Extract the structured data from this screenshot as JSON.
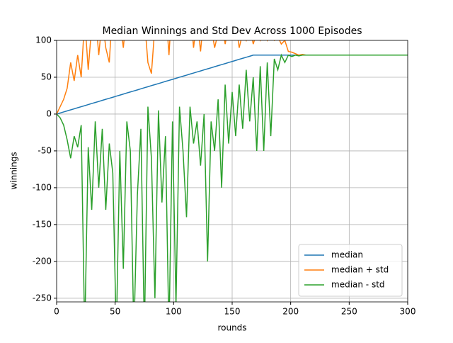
{
  "chart_data": {
    "type": "line",
    "title": "Median Winnings and Std Dev Across 1000 Episodes",
    "xlabel": "rounds",
    "ylabel": "winnings",
    "xlim": [
      0,
      300
    ],
    "ylim": [
      -255,
      100
    ],
    "xticks": [
      0,
      50,
      100,
      150,
      200,
      250,
      300
    ],
    "yticks": [
      -250,
      -200,
      -150,
      -100,
      -50,
      0,
      50,
      100
    ],
    "grid": true,
    "legend": "lower right",
    "x": [
      0,
      3,
      6,
      9,
      12,
      15,
      18,
      21,
      24,
      27,
      30,
      33,
      36,
      39,
      42,
      45,
      48,
      51,
      54,
      57,
      60,
      63,
      66,
      69,
      72,
      75,
      78,
      81,
      84,
      87,
      90,
      93,
      96,
      99,
      102,
      105,
      108,
      111,
      114,
      117,
      120,
      123,
      126,
      129,
      132,
      135,
      138,
      141,
      144,
      147,
      150,
      153,
      156,
      159,
      162,
      165,
      168,
      171,
      174,
      177,
      180,
      183,
      186,
      189,
      192,
      195,
      198,
      201,
      204,
      207,
      210,
      213,
      216,
      219,
      222,
      225,
      228,
      231,
      234,
      237,
      240,
      243,
      246,
      249,
      252,
      255,
      258,
      261,
      264,
      267,
      270,
      273,
      276,
      279,
      282,
      285,
      288,
      291,
      294,
      297,
      300
    ],
    "series": [
      {
        "name": "median",
        "color": "#1f77b4",
        "values": [
          0,
          1.4,
          2.9,
          4.3,
          5.7,
          7.1,
          8.6,
          10,
          11.4,
          12.9,
          14.3,
          15.7,
          17.1,
          18.6,
          20,
          21.4,
          22.8,
          24.3,
          25.7,
          27.1,
          28.6,
          30,
          31.4,
          32.8,
          34.3,
          35.7,
          37.1,
          38.6,
          40,
          41.4,
          42.8,
          44.3,
          45.7,
          47.1,
          48.5,
          50,
          51.4,
          52.8,
          54.3,
          55.7,
          57.1,
          58.5,
          60,
          61.4,
          62.8,
          64.3,
          65.7,
          67.1,
          68.5,
          70,
          71.4,
          72.8,
          74.3,
          75.7,
          77.1,
          78.5,
          80,
          80,
          80,
          80,
          80,
          80,
          80,
          80,
          80,
          80,
          80,
          80,
          80,
          80,
          80,
          80,
          80,
          80,
          80,
          80,
          80,
          80,
          80,
          80,
          80,
          80,
          80,
          80,
          80,
          80,
          80,
          80,
          80,
          80,
          80,
          80,
          80,
          80,
          80,
          80,
          80,
          80,
          80,
          80,
          80
        ]
      },
      {
        "name": "median + std",
        "color": "#ff7f0e",
        "values": [
          0,
          10,
          20,
          35,
          70,
          45,
          80,
          50,
          130,
          60,
          120,
          140,
          80,
          130,
          90,
          70,
          150,
          110,
          130,
          90,
          140,
          120,
          150,
          110,
          160,
          130,
          70,
          55,
          120,
          140,
          110,
          150,
          80,
          160,
          110,
          120,
          140,
          100,
          150,
          90,
          130,
          85,
          140,
          100,
          120,
          90,
          110,
          130,
          95,
          120,
          100,
          125,
          90,
          110,
          100,
          120,
          95,
          110,
          100,
          115,
          100,
          110,
          100,
          105,
          95,
          100,
          85,
          84,
          82,
          80,
          81,
          80,
          80,
          80,
          80,
          80,
          80,
          80,
          80,
          80,
          80,
          80,
          80,
          80,
          80,
          80,
          80,
          80,
          80,
          80,
          80,
          80,
          80,
          80,
          80,
          80,
          80,
          80,
          80,
          80,
          80
        ]
      },
      {
        "name": "median - std",
        "color": "#2ca02c",
        "values": [
          0,
          -5,
          -15,
          -35,
          -60,
          -30,
          -45,
          -15,
          -300,
          -45,
          -130,
          -10,
          -100,
          -20,
          -130,
          -40,
          -80,
          -300,
          -50,
          -210,
          -10,
          -50,
          -300,
          -110,
          -20,
          -300,
          10,
          -60,
          -250,
          5,
          -120,
          -30,
          -300,
          -10,
          -260,
          10,
          -50,
          -140,
          10,
          -40,
          -10,
          -70,
          0,
          -200,
          -10,
          -50,
          20,
          -100,
          40,
          -40,
          30,
          -30,
          40,
          -20,
          60,
          -10,
          50,
          -50,
          65,
          -50,
          70,
          -30,
          75,
          60,
          80,
          70,
          80,
          78,
          80,
          79,
          80,
          80,
          80,
          80,
          80,
          80,
          80,
          80,
          80,
          80,
          80,
          80,
          80,
          80,
          80,
          80,
          80,
          80,
          80,
          80,
          80,
          80,
          80,
          80,
          80,
          80,
          80,
          80,
          80,
          80,
          80
        ]
      }
    ]
  }
}
